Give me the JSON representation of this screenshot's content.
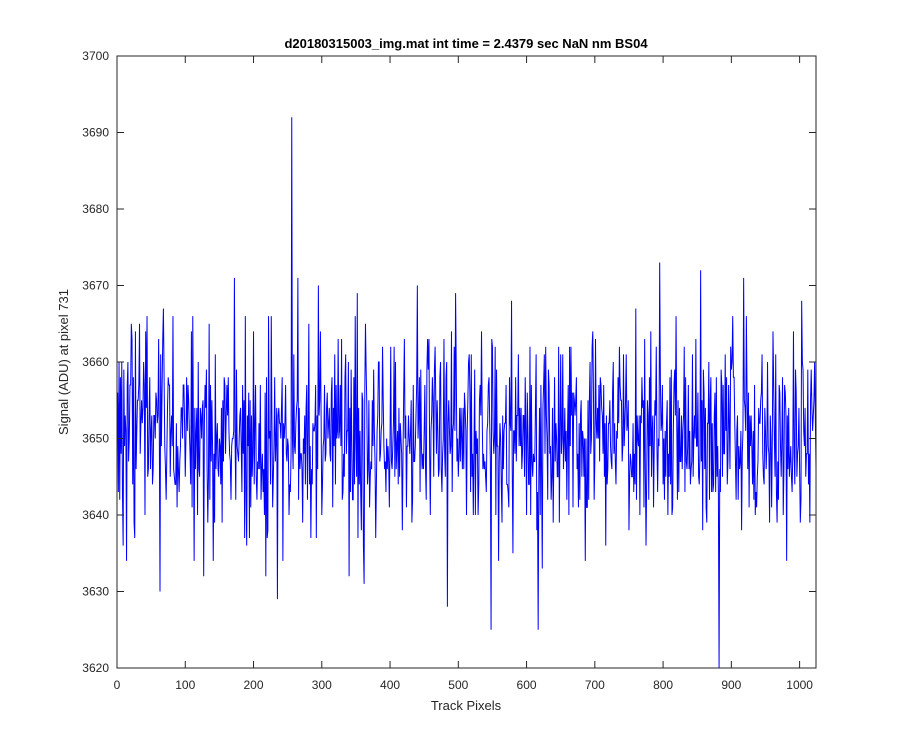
{
  "chart_data": {
    "type": "line",
    "title": "d20180315003_img.mat int time = 2.4379 sec  NaN nm BS04",
    "xlabel": "Track Pixels",
    "ylabel": "Signal (ADU) at pixel 731",
    "xlim": [
      0,
      1024
    ],
    "ylim": [
      3620,
      3700
    ],
    "xticks": [
      0,
      100,
      200,
      300,
      400,
      500,
      600,
      700,
      800,
      900,
      1000
    ],
    "yticks": [
      3620,
      3630,
      3640,
      3650,
      3660,
      3670,
      3680,
      3690,
      3700
    ],
    "grid": false,
    "legend": "none",
    "series": [
      {
        "color": "#0000ff",
        "baseline": 3650,
        "x_start": 1,
        "x_end": 1024,
        "notable_points": [
          {
            "x": 3,
            "y": 3660
          },
          {
            "x": 9,
            "y": 3636
          },
          {
            "x": 14,
            "y": 3634
          },
          {
            "x": 22,
            "y": 3663
          },
          {
            "x": 27,
            "y": 3664
          },
          {
            "x": 33,
            "y": 3665
          },
          {
            "x": 44,
            "y": 3666
          },
          {
            "x": 63,
            "y": 3630
          },
          {
            "x": 68,
            "y": 3667
          },
          {
            "x": 82,
            "y": 3666
          },
          {
            "x": 127,
            "y": 3632
          },
          {
            "x": 135,
            "y": 3665
          },
          {
            "x": 172,
            "y": 3671
          },
          {
            "x": 200,
            "y": 3664
          },
          {
            "x": 218,
            "y": 3632
          },
          {
            "x": 222,
            "y": 3666
          },
          {
            "x": 235,
            "y": 3629
          },
          {
            "x": 252,
            "y": 3640
          },
          {
            "x": 256,
            "y": 3692
          },
          {
            "x": 265,
            "y": 3671
          },
          {
            "x": 295,
            "y": 3670
          },
          {
            "x": 315,
            "y": 3658
          },
          {
            "x": 340,
            "y": 3632
          },
          {
            "x": 352,
            "y": 3669
          },
          {
            "x": 362,
            "y": 3631
          },
          {
            "x": 440,
            "y": 3670
          },
          {
            "x": 484,
            "y": 3628
          },
          {
            "x": 496,
            "y": 3669
          },
          {
            "x": 548,
            "y": 3625
          },
          {
            "x": 578,
            "y": 3668
          },
          {
            "x": 617,
            "y": 3625
          },
          {
            "x": 623,
            "y": 3633
          },
          {
            "x": 665,
            "y": 3662
          },
          {
            "x": 760,
            "y": 3667
          },
          {
            "x": 795,
            "y": 3673
          },
          {
            "x": 855,
            "y": 3672
          },
          {
            "x": 882,
            "y": 3620
          },
          {
            "x": 918,
            "y": 3671
          },
          {
            "x": 1003,
            "y": 3668
          },
          {
            "x": 1024,
            "y": 3646
          }
        ]
      }
    ]
  }
}
